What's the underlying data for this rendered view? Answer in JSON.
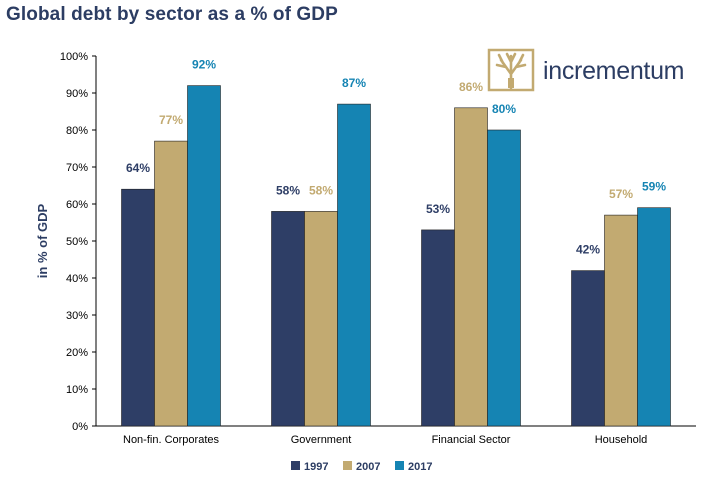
{
  "title": "Global debt by sector as a % of GDP",
  "logo": {
    "text": "incrementum",
    "icon": "tree-logo-icon"
  },
  "colors": {
    "1997": "#2e3e66",
    "2007": "#c2aa71",
    "2017": "#1584b3",
    "title": "#2c3d63",
    "axis_text": "#000000"
  },
  "chart_data": {
    "type": "bar",
    "title": "Global debt by sector as a % of GDP",
    "ylabel": "in % of GDP",
    "xlabel": "",
    "ylim": [
      0,
      100
    ],
    "yticks": [
      0,
      10,
      20,
      30,
      40,
      50,
      60,
      70,
      80,
      90,
      100
    ],
    "ytick_labels": [
      "0%",
      "10%",
      "20%",
      "30%",
      "40%",
      "50%",
      "60%",
      "70%",
      "80%",
      "90%",
      "100%"
    ],
    "categories": [
      "Non-fin. Corporates",
      "Government",
      "Financial Sector",
      "Household"
    ],
    "series": [
      {
        "name": "1997",
        "values": [
          64,
          58,
          53,
          42
        ],
        "labels": [
          "64%",
          "58%",
          "53%",
          "42%"
        ]
      },
      {
        "name": "2007",
        "values": [
          77,
          58,
          86,
          57
        ],
        "labels": [
          "77%",
          "58%",
          "86%",
          "57%"
        ]
      },
      {
        "name": "2017",
        "values": [
          92,
          87,
          80,
          59
        ],
        "labels": [
          "92%",
          "87%",
          "80%",
          "59%"
        ]
      }
    ],
    "legend_position": "bottom",
    "grid": false
  }
}
